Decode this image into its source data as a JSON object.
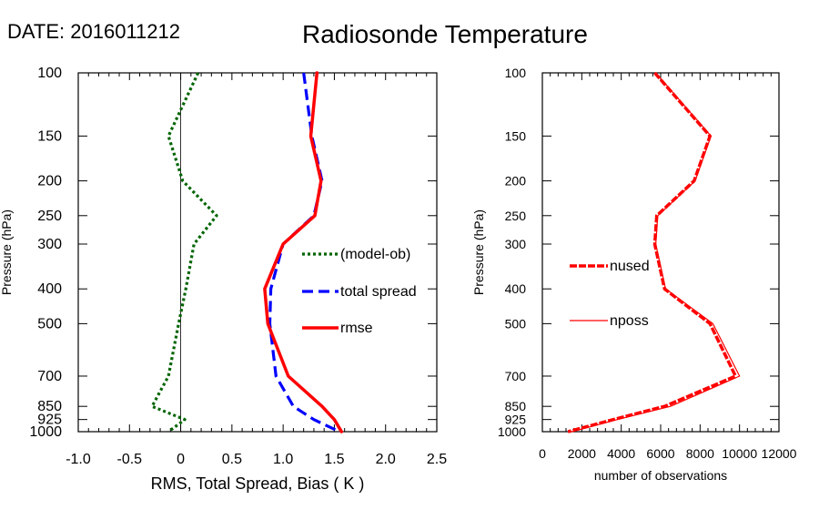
{
  "header": {
    "date_label": "DATE: 2016011212",
    "title": "Radiosonde Temperature"
  },
  "chart_data": [
    {
      "type": "line",
      "ylabel": "Pressure (hPa)",
      "xlabel": "RMS, Total Spread, Bias ( K )",
      "yscale": "log",
      "yreversed": true,
      "ylim": [
        1000,
        100
      ],
      "xlim": [
        -1.0,
        2.5
      ],
      "y_ticks": [
        100,
        150,
        200,
        250,
        300,
        400,
        500,
        700,
        850,
        925,
        1000
      ],
      "x_ticks": [
        -1.0,
        -0.5,
        0.0,
        0.5,
        1.0,
        1.5,
        2.0,
        2.5
      ],
      "x_tick_labels": [
        "-1.0",
        "-0.5",
        "0",
        "0.5",
        "1.0",
        "1.5",
        "2.0",
        "2.5"
      ],
      "zero_line": 0,
      "legend_position": "right",
      "series": [
        {
          "name": "(model-ob)",
          "color": "#006400",
          "style": "dotted",
          "points": [
            [
              0.17,
              100
            ],
            [
              -0.12,
              150
            ],
            [
              0.02,
              200
            ],
            [
              0.35,
              250
            ],
            [
              0.13,
              300
            ],
            [
              0.05,
              400
            ],
            [
              -0.02,
              500
            ],
            [
              -0.12,
              700
            ],
            [
              -0.28,
              850
            ],
            [
              0.04,
              925
            ],
            [
              -0.12,
              1000
            ]
          ]
        },
        {
          "name": "total spread",
          "color": "#0000ff",
          "style": "dashed",
          "points": [
            [
              1.2,
              100
            ],
            [
              1.28,
              150
            ],
            [
              1.38,
              200
            ],
            [
              1.3,
              250
            ],
            [
              1.0,
              300
            ],
            [
              0.88,
              400
            ],
            [
              0.87,
              500
            ],
            [
              0.93,
              700
            ],
            [
              1.1,
              850
            ],
            [
              1.3,
              925
            ],
            [
              1.55,
              1000
            ]
          ]
        },
        {
          "name": "rmse",
          "color": "#ff0000",
          "style": "solid",
          "points": [
            [
              1.33,
              100
            ],
            [
              1.27,
              150
            ],
            [
              1.37,
              200
            ],
            [
              1.31,
              250
            ],
            [
              1.0,
              300
            ],
            [
              0.82,
              400
            ],
            [
              0.85,
              500
            ],
            [
              1.05,
              700
            ],
            [
              1.38,
              850
            ],
            [
              1.5,
              925
            ],
            [
              1.57,
              1000
            ]
          ]
        }
      ]
    },
    {
      "type": "line",
      "ylabel": "Pressure (hPa)",
      "xlabel": "number of observations",
      "yscale": "log",
      "yreversed": true,
      "ylim": [
        1000,
        100
      ],
      "xlim": [
        0,
        12000
      ],
      "y_ticks": [
        100,
        150,
        200,
        250,
        300,
        400,
        500,
        700,
        850,
        925,
        1000
      ],
      "x_ticks": [
        0,
        2000,
        4000,
        6000,
        8000,
        10000,
        12000
      ],
      "x_tick_labels": [
        "0",
        "2000",
        "4000",
        "6000",
        "8000",
        "10000",
        "12000"
      ],
      "legend_position": "left",
      "series": [
        {
          "name": "nused",
          "color": "#ff0000",
          "style": "dashed-thick",
          "points": [
            [
              5700,
              100
            ],
            [
              8500,
              150
            ],
            [
              7700,
              200
            ],
            [
              5800,
              250
            ],
            [
              5700,
              300
            ],
            [
              6200,
              400
            ],
            [
              8500,
              500
            ],
            [
              9800,
              700
            ],
            [
              6200,
              850
            ],
            [
              3600,
              925
            ],
            [
              1300,
              1000
            ]
          ]
        },
        {
          "name": "nposs",
          "color": "#ff0000",
          "style": "thin",
          "points": [
            [
              5750,
              100
            ],
            [
              8550,
              150
            ],
            [
              7750,
              200
            ],
            [
              5850,
              250
            ],
            [
              5750,
              300
            ],
            [
              6250,
              400
            ],
            [
              8650,
              500
            ],
            [
              10000,
              700
            ],
            [
              6500,
              850
            ],
            [
              3800,
              925
            ],
            [
              1500,
              1000
            ]
          ]
        }
      ]
    }
  ]
}
